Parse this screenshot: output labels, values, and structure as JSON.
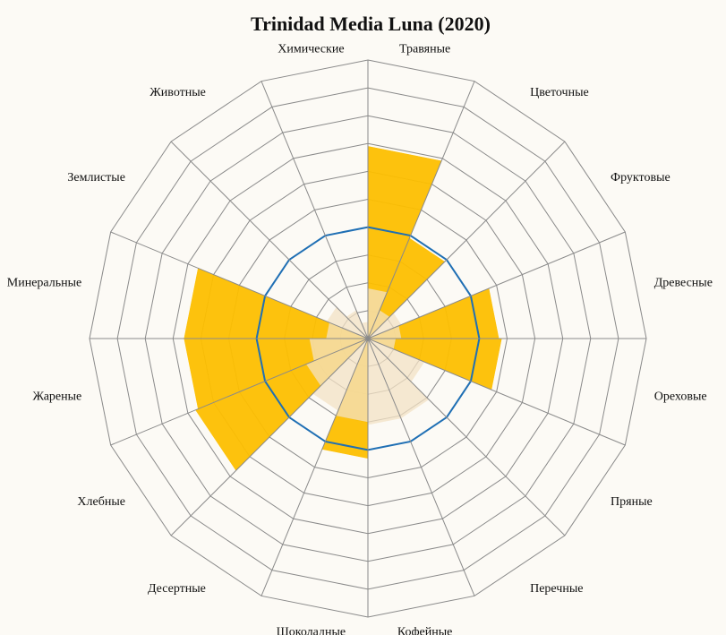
{
  "chart_data": {
    "type": "radar-bar",
    "title": "Trinidad Media Luna (2020)",
    "categories": [
      "Травяные",
      "Цветочные",
      "Фруктовые",
      "Древесные",
      "Ореховые",
      "Пряные",
      "Перечные",
      "Кофейные",
      "Шоколадные",
      "Десертные",
      "Хлебные",
      "Жареные",
      "Минеральные",
      "Землистые",
      "Животные",
      "Химические"
    ],
    "rlim": [
      0,
      10
    ],
    "rings": 10,
    "grid": true,
    "series": [
      {
        "values": [
          6.9,
          3.9,
          0,
          4.7,
          4.8,
          0,
          0,
          0,
          4.3,
          0,
          6.7,
          6.6,
          6.6,
          0,
          0,
          0
        ],
        "color": "#fdbf00"
      },
      {
        "values": [
          1.8,
          1.1,
          1.3,
          1.2,
          1.0,
          2.2,
          3.1,
          3.1,
          3.0,
          2.8,
          2.4,
          2.1,
          1.5,
          1.6,
          1.1,
          0.6
        ],
        "color": "#f3e2c4"
      }
    ],
    "reference_line": {
      "value": 4.0,
      "color": "#1f6fb4"
    }
  }
}
